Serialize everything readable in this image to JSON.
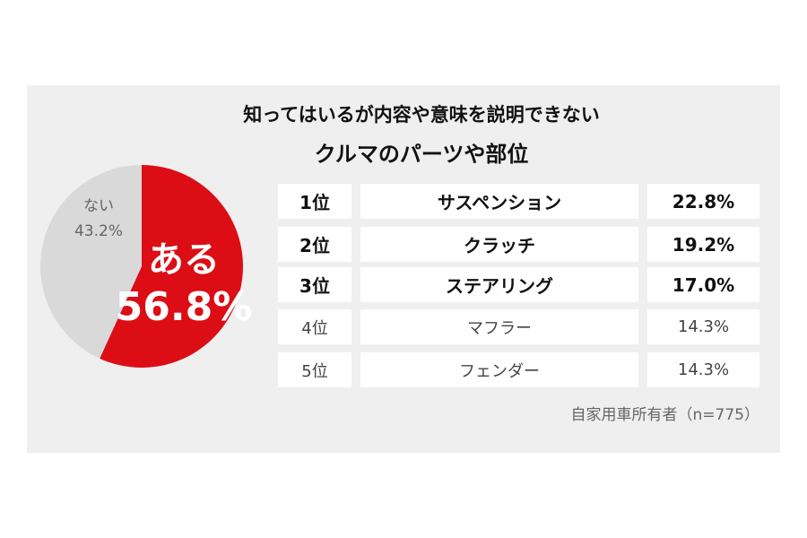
{
  "title": [
    "知ってはいるが内容や意味を説明できない",
    "クルマのパーツや部位"
  ],
  "chart_data": {
    "type": "pie",
    "categories": [
      "ある",
      "ない"
    ],
    "values": [
      56.8,
      43.2
    ],
    "value_labels": [
      "56.8%",
      "43.2%"
    ],
    "colors": [
      "#dc0d15",
      "#d9d9d9"
    ]
  },
  "table": {
    "rows": [
      [
        "1位",
        "サスペンション",
        "22.8%"
      ],
      [
        "2位",
        "クラッチ",
        "19.2%"
      ],
      [
        "3位",
        "ステアリング",
        "17.0%"
      ],
      [
        "4位",
        "マフラー",
        "14.3%"
      ],
      [
        "5位",
        "フェンダー",
        "14.3%"
      ]
    ]
  },
  "note": "自家用車所有者（n=775）"
}
